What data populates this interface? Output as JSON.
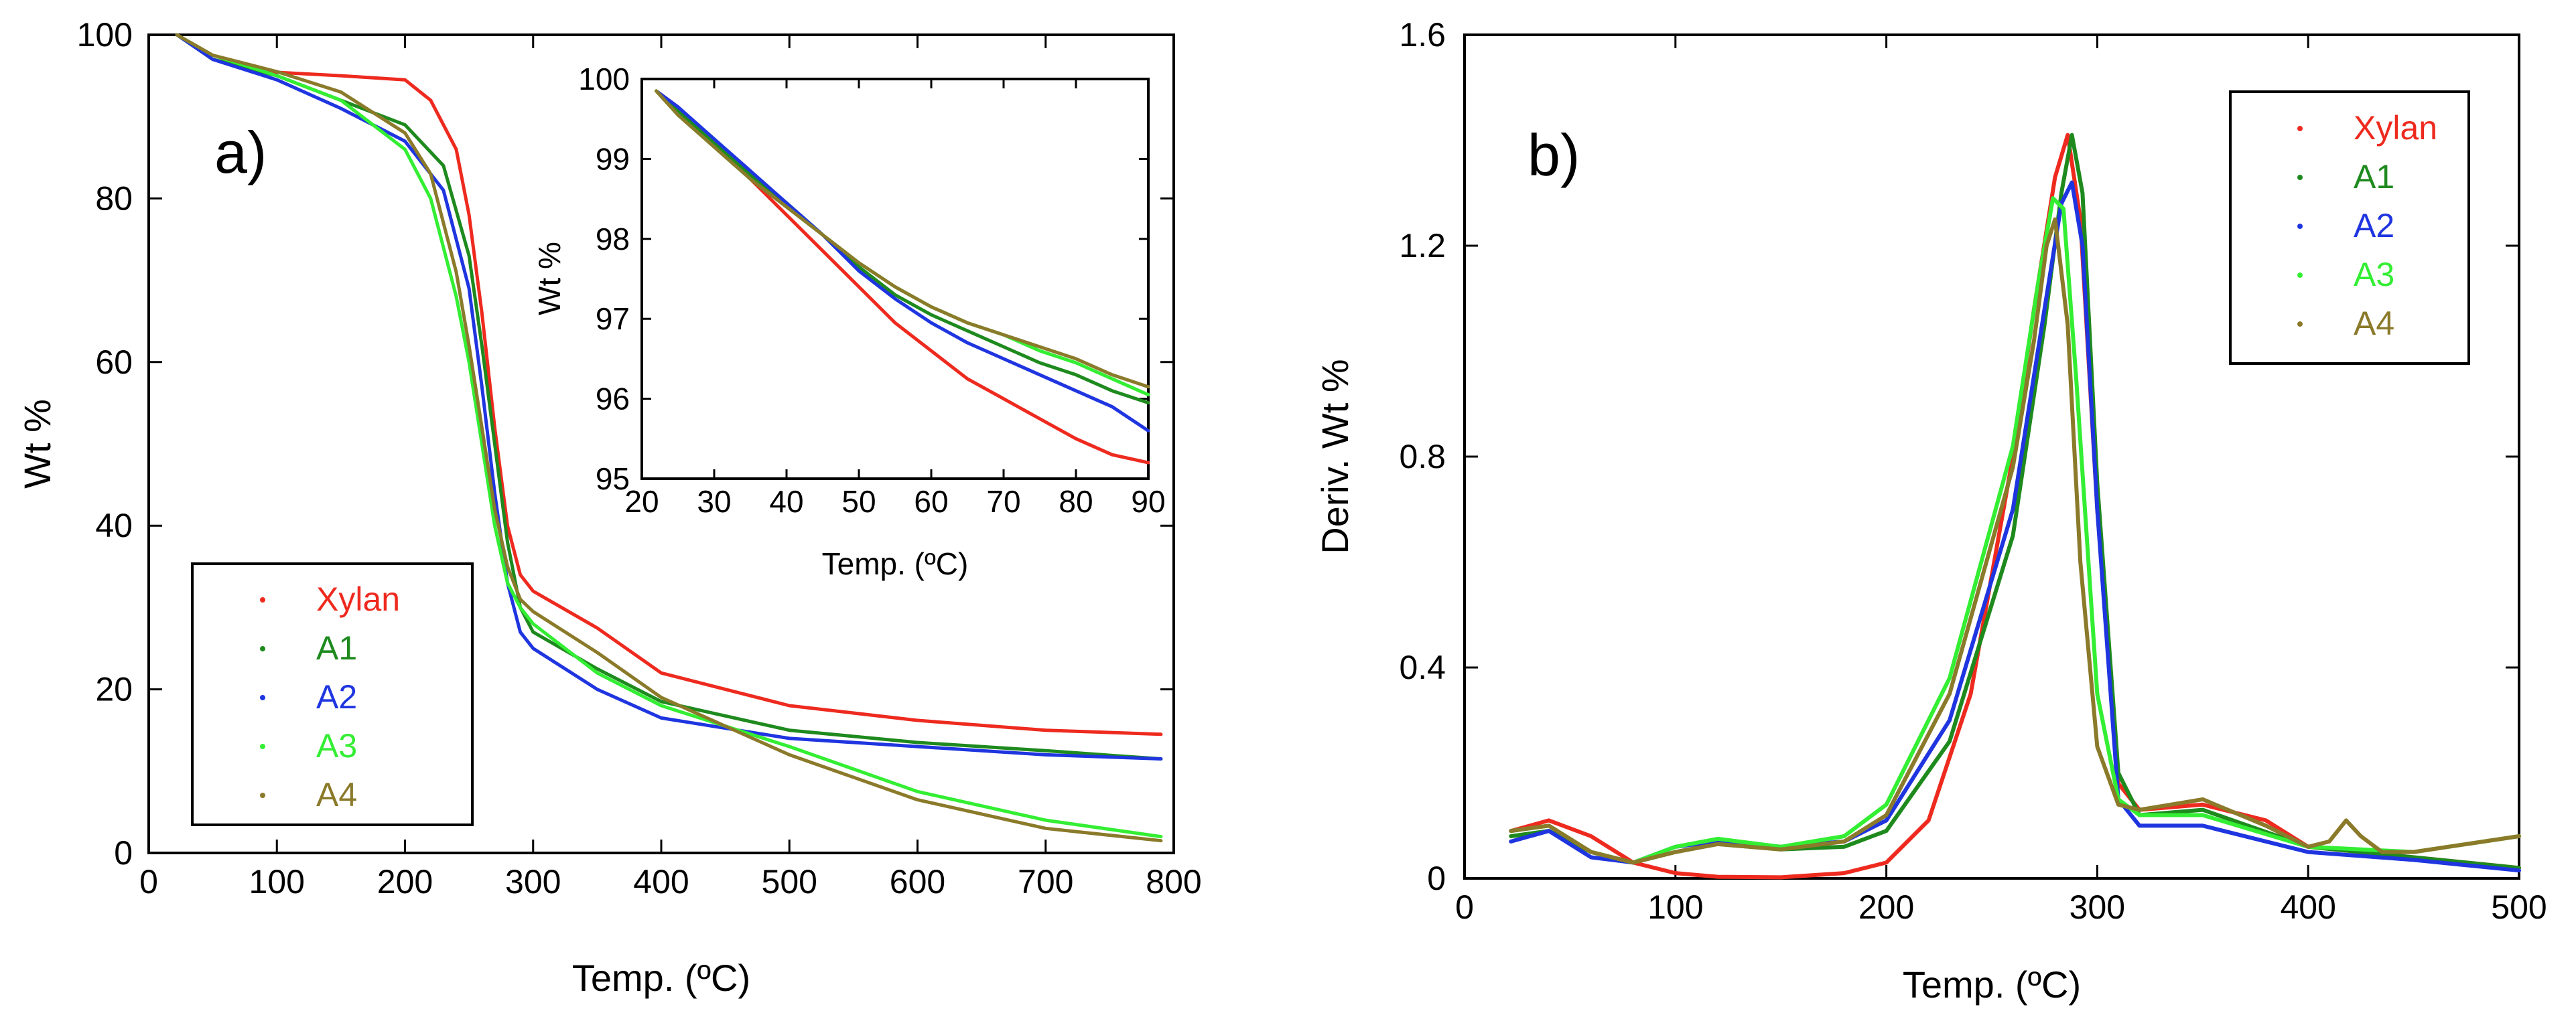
{
  "colors": {
    "Xylan": "#ee2a1f",
    "A1": "#1e8a1e",
    "A2": "#1f35e0",
    "A3": "#33ee33",
    "A4": "#8a7a2a"
  },
  "chart_data": [
    {
      "id": "a",
      "panel_label": "a)",
      "type": "line",
      "xlabel": "Temp. (ºC)",
      "ylabel": "Wt %",
      "xlim": [
        0,
        800
      ],
      "ylim": [
        0,
        100
      ],
      "xticks": [
        0,
        100,
        200,
        300,
        400,
        500,
        600,
        700,
        800
      ],
      "yticks": [
        0,
        20,
        40,
        60,
        80,
        100
      ],
      "legend": {
        "position": "bottom-left",
        "entries": [
          "Xylan",
          "A1",
          "A2",
          "A3",
          "A4"
        ]
      },
      "series": [
        {
          "name": "Xylan",
          "x": [
            22,
            50,
            90,
            150,
            200,
            220,
            240,
            250,
            260,
            270,
            280,
            290,
            300,
            350,
            400,
            500,
            600,
            700,
            790
          ],
          "y": [
            100,
            97,
            95.5,
            95,
            94.5,
            92,
            86,
            78,
            66,
            52,
            40,
            34,
            32,
            27.5,
            22,
            18,
            16.2,
            15,
            14.5
          ]
        },
        {
          "name": "A1",
          "x": [
            22,
            50,
            100,
            150,
            200,
            230,
            250,
            260,
            270,
            280,
            290,
            300,
            350,
            400,
            500,
            600,
            700,
            790
          ],
          "y": [
            100,
            97,
            95,
            92,
            89,
            84,
            73,
            62,
            50,
            38,
            30,
            27,
            22.5,
            18.5,
            15,
            13.5,
            12.5,
            11.5
          ]
        },
        {
          "name": "A2",
          "x": [
            22,
            50,
            100,
            150,
            200,
            230,
            250,
            260,
            270,
            280,
            290,
            300,
            350,
            400,
            500,
            600,
            700,
            790
          ],
          "y": [
            100,
            97,
            94.5,
            91,
            87,
            81,
            69,
            57,
            44,
            33,
            27,
            25,
            20,
            16.5,
            14,
            13,
            12,
            11.5
          ]
        },
        {
          "name": "A3",
          "x": [
            22,
            50,
            100,
            150,
            200,
            220,
            240,
            250,
            260,
            270,
            280,
            290,
            300,
            350,
            400,
            500,
            600,
            700,
            790
          ],
          "y": [
            100,
            97.5,
            95,
            92,
            86,
            80,
            68,
            60,
            50,
            40,
            33,
            30,
            28,
            22,
            18,
            13,
            7.5,
            4,
            2
          ]
        },
        {
          "name": "A4",
          "x": [
            22,
            50,
            100,
            150,
            200,
            220,
            240,
            250,
            260,
            270,
            280,
            290,
            300,
            350,
            400,
            500,
            600,
            700,
            790
          ],
          "y": [
            100,
            97.5,
            95.5,
            93,
            88,
            83,
            71,
            62,
            52,
            42,
            35,
            31,
            29.5,
            24.5,
            19,
            12,
            6.5,
            3,
            1.5
          ]
        }
      ]
    },
    {
      "id": "a-inset",
      "type": "line",
      "xlabel": "Temp. (ºC)",
      "ylabel": "Wt %",
      "xlim": [
        20,
        90
      ],
      "ylim": [
        95,
        100
      ],
      "xticks": [
        20,
        30,
        40,
        50,
        60,
        70,
        80,
        90
      ],
      "yticks": [
        95,
        96,
        97,
        98,
        99,
        100
      ],
      "series": [
        {
          "name": "Xylan",
          "x": [
            22,
            25,
            30,
            35,
            40,
            45,
            50,
            55,
            60,
            65,
            70,
            75,
            80,
            85,
            90
          ],
          "y": [
            99.85,
            99.65,
            99.2,
            98.75,
            98.3,
            97.85,
            97.4,
            96.95,
            96.6,
            96.25,
            96.0,
            95.75,
            95.5,
            95.3,
            95.2
          ]
        },
        {
          "name": "A1",
          "x": [
            22,
            25,
            30,
            35,
            40,
            45,
            50,
            55,
            60,
            65,
            70,
            75,
            80,
            85,
            90
          ],
          "y": [
            99.85,
            99.6,
            99.2,
            98.8,
            98.45,
            98.05,
            97.65,
            97.3,
            97.05,
            96.85,
            96.65,
            96.45,
            96.3,
            96.1,
            95.95
          ]
        },
        {
          "name": "A2",
          "x": [
            22,
            25,
            30,
            35,
            40,
            45,
            50,
            55,
            60,
            65,
            70,
            75,
            80,
            85,
            90
          ],
          "y": [
            99.85,
            99.65,
            99.25,
            98.85,
            98.45,
            98.05,
            97.6,
            97.25,
            96.95,
            96.7,
            96.5,
            96.3,
            96.1,
            95.9,
            95.6
          ]
        },
        {
          "name": "A3",
          "x": [
            22,
            25,
            30,
            35,
            40,
            45,
            50,
            55,
            60,
            65,
            70,
            75,
            80,
            85,
            90
          ],
          "y": [
            99.85,
            99.55,
            99.15,
            98.75,
            98.4,
            98.05,
            97.7,
            97.4,
            97.15,
            96.95,
            96.8,
            96.6,
            96.45,
            96.25,
            96.05
          ]
        },
        {
          "name": "A4",
          "x": [
            22,
            25,
            30,
            35,
            40,
            45,
            50,
            55,
            60,
            65,
            70,
            75,
            80,
            85,
            90
          ],
          "y": [
            99.85,
            99.55,
            99.15,
            98.75,
            98.4,
            98.05,
            97.7,
            97.4,
            97.15,
            96.95,
            96.8,
            96.65,
            96.5,
            96.3,
            96.15
          ]
        }
      ]
    },
    {
      "id": "b",
      "panel_label": "b)",
      "type": "line",
      "xlabel": "Temp. (ºC)",
      "ylabel": "Deriv. Wt %",
      "xlim": [
        0,
        500
      ],
      "ylim": [
        0,
        1.6
      ],
      "xticks": [
        0,
        100,
        200,
        300,
        400,
        500
      ],
      "yticks": [
        0,
        0.4,
        0.8,
        1.2,
        1.6
      ],
      "legend": {
        "position": "top-right",
        "entries": [
          "Xylan",
          "A1",
          "A2",
          "A3",
          "A4"
        ]
      },
      "series": [
        {
          "name": "Xylan",
          "x": [
            22,
            40,
            60,
            80,
            100,
            120,
            150,
            180,
            200,
            220,
            240,
            260,
            270,
            280,
            286,
            292,
            300,
            310,
            320,
            350,
            380,
            400,
            450,
            500
          ],
          "y": [
            0.09,
            0.11,
            0.08,
            0.03,
            0.01,
            0.003,
            0.002,
            0.01,
            0.03,
            0.11,
            0.35,
            0.8,
            1.08,
            1.33,
            1.41,
            1.25,
            0.7,
            0.18,
            0.13,
            0.14,
            0.11,
            0.06,
            0.04,
            0.02
          ]
        },
        {
          "name": "A1",
          "x": [
            22,
            40,
            60,
            80,
            100,
            120,
            150,
            180,
            200,
            230,
            260,
            275,
            283,
            288,
            293,
            300,
            310,
            320,
            350,
            400,
            450,
            500
          ],
          "y": [
            0.08,
            0.09,
            0.05,
            0.03,
            0.05,
            0.065,
            0.055,
            0.06,
            0.09,
            0.26,
            0.65,
            1.05,
            1.3,
            1.41,
            1.3,
            0.75,
            0.2,
            0.12,
            0.13,
            0.06,
            0.04,
            0.02
          ]
        },
        {
          "name": "A2",
          "x": [
            22,
            40,
            60,
            80,
            100,
            120,
            150,
            180,
            200,
            230,
            260,
            275,
            283,
            288,
            293,
            300,
            310,
            320,
            350,
            400,
            450,
            500
          ],
          "y": [
            0.07,
            0.09,
            0.04,
            0.03,
            0.06,
            0.07,
            0.06,
            0.07,
            0.11,
            0.3,
            0.7,
            1.08,
            1.28,
            1.32,
            1.2,
            0.7,
            0.15,
            0.1,
            0.1,
            0.05,
            0.035,
            0.015
          ]
        },
        {
          "name": "A3",
          "x": [
            22,
            40,
            60,
            80,
            100,
            120,
            150,
            180,
            200,
            230,
            260,
            272,
            279,
            284,
            290,
            300,
            310,
            320,
            350,
            400,
            450,
            500
          ],
          "y": [
            0.09,
            0.1,
            0.05,
            0.03,
            0.06,
            0.075,
            0.06,
            0.08,
            0.14,
            0.38,
            0.82,
            1.13,
            1.29,
            1.27,
            0.95,
            0.35,
            0.15,
            0.12,
            0.12,
            0.06,
            0.05,
            0.08
          ]
        },
        {
          "name": "A4",
          "x": [
            22,
            40,
            60,
            80,
            100,
            120,
            150,
            180,
            200,
            230,
            260,
            270,
            276,
            280,
            286,
            292,
            300,
            310,
            320,
            350,
            380,
            400,
            410,
            418,
            425,
            435,
            450,
            500
          ],
          "y": [
            0.09,
            0.1,
            0.05,
            0.03,
            0.05,
            0.065,
            0.055,
            0.07,
            0.12,
            0.35,
            0.78,
            1.02,
            1.2,
            1.25,
            1.05,
            0.6,
            0.25,
            0.14,
            0.13,
            0.15,
            0.1,
            0.06,
            0.07,
            0.11,
            0.08,
            0.05,
            0.05,
            0.08
          ]
        }
      ]
    }
  ]
}
